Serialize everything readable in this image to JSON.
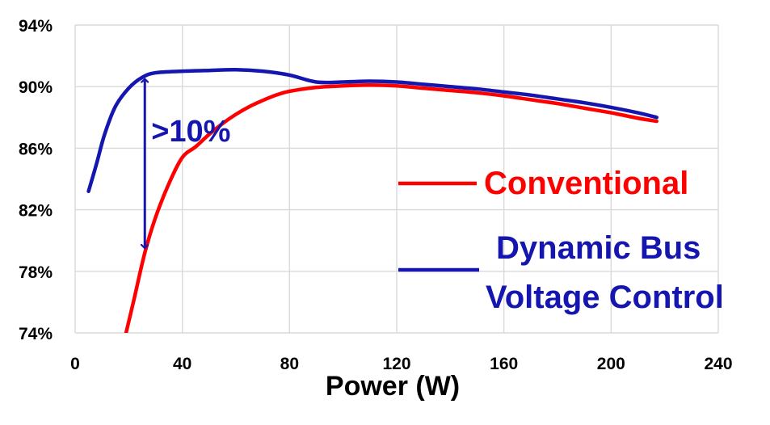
{
  "chart_data": {
    "type": "line",
    "xlabel": "Power (W)",
    "ylabel": "",
    "xlim": [
      0,
      240
    ],
    "ylim": [
      74,
      94
    ],
    "x_ticks": [
      0,
      40,
      80,
      120,
      160,
      200,
      240
    ],
    "x_tick_labels": [
      "0",
      "40",
      "80",
      "120",
      "160",
      "200",
      "240"
    ],
    "y_ticks": [
      74,
      78,
      82,
      86,
      90,
      94
    ],
    "y_tick_labels": [
      "74%",
      "78%",
      "82%",
      "86%",
      "90%",
      "94%"
    ],
    "grid": true,
    "legend_position": "right",
    "series": [
      {
        "name": "Conventional",
        "color": "#ff0000",
        "points": [
          [
            19,
            74.0
          ],
          [
            22,
            76.2
          ],
          [
            26,
            79.2
          ],
          [
            30,
            81.5
          ],
          [
            35,
            83.7
          ],
          [
            40,
            85.4
          ],
          [
            45,
            86.1
          ],
          [
            50,
            86.9
          ],
          [
            55,
            87.6
          ],
          [
            60,
            88.2
          ],
          [
            65,
            88.7
          ],
          [
            70,
            89.1
          ],
          [
            75,
            89.45
          ],
          [
            80,
            89.7
          ],
          [
            90,
            89.95
          ],
          [
            100,
            90.05
          ],
          [
            110,
            90.1
          ],
          [
            120,
            90.05
          ],
          [
            130,
            89.9
          ],
          [
            140,
            89.75
          ],
          [
            150,
            89.6
          ],
          [
            160,
            89.4
          ],
          [
            170,
            89.15
          ],
          [
            180,
            88.9
          ],
          [
            190,
            88.6
          ],
          [
            200,
            88.3
          ],
          [
            210,
            87.95
          ],
          [
            217,
            87.75
          ]
        ]
      },
      {
        "name": "Dynamic Bus Voltage Control",
        "color": "#1515b0",
        "points": [
          [
            5,
            83.2
          ],
          [
            8,
            85.0
          ],
          [
            11,
            86.9
          ],
          [
            15,
            88.7
          ],
          [
            20,
            89.9
          ],
          [
            25,
            90.6
          ],
          [
            30,
            90.9
          ],
          [
            40,
            91.0
          ],
          [
            50,
            91.05
          ],
          [
            60,
            91.1
          ],
          [
            70,
            91.0
          ],
          [
            80,
            90.75
          ],
          [
            90,
            90.3
          ],
          [
            100,
            90.3
          ],
          [
            110,
            90.35
          ],
          [
            120,
            90.3
          ],
          [
            130,
            90.15
          ],
          [
            140,
            90.0
          ],
          [
            150,
            89.85
          ],
          [
            160,
            89.65
          ],
          [
            170,
            89.45
          ],
          [
            180,
            89.2
          ],
          [
            190,
            88.95
          ],
          [
            200,
            88.65
          ],
          [
            210,
            88.3
          ],
          [
            217,
            88.0
          ]
        ]
      }
    ],
    "annotation": {
      "text": ">10%",
      "color": "#1515b0",
      "arrow_x": 26,
      "arrow_y_top": 90.5,
      "arrow_y_bottom": 79.5
    }
  }
}
